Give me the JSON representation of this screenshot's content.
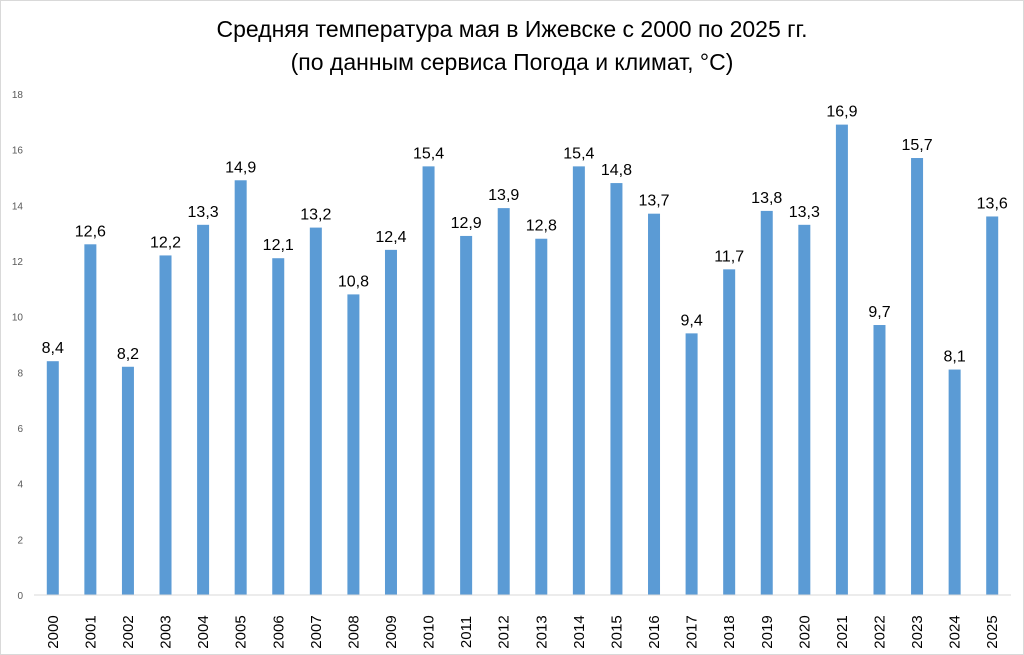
{
  "chart_data": {
    "type": "bar",
    "title": "Средняя температура мая в Ижевске с 2000 по 2025 гг.",
    "subtitle": "(по данным сервиса Погода и климат, °C)",
    "xlabel": "",
    "ylabel": "",
    "ylim": [
      0,
      18
    ],
    "yticks": [
      "0",
      "2",
      "4",
      "6",
      "8",
      "10",
      "12",
      "14",
      "16",
      "18"
    ],
    "grid": false,
    "bar_color": "#5b9bd5",
    "categories": [
      "2000",
      "2001",
      "2002",
      "2003",
      "2004",
      "2005",
      "2006",
      "2007",
      "2008",
      "2009",
      "2010",
      "2011",
      "2012",
      "2013",
      "2014",
      "2015",
      "2016",
      "2017",
      "2018",
      "2019",
      "2020",
      "2021",
      "2022",
      "2023",
      "2024",
      "2025"
    ],
    "values": [
      8.4,
      12.6,
      8.2,
      12.2,
      13.3,
      14.9,
      12.1,
      13.2,
      10.8,
      12.4,
      15.4,
      12.9,
      13.9,
      12.8,
      15.4,
      14.8,
      13.7,
      9.4,
      11.7,
      13.8,
      13.3,
      16.9,
      9.7,
      15.7,
      8.1,
      13.6
    ],
    "labels": [
      "8,4",
      "12,6",
      "8,2",
      "12,2",
      "13,3",
      "14,9",
      "12,1",
      "13,2",
      "10,8",
      "12,4",
      "15,4",
      "12,9",
      "13,9",
      "12,8",
      "15,4",
      "14,8",
      "13,7",
      "9,4",
      "11,7",
      "13,8",
      "13,3",
      "16,9",
      "9,7",
      "15,7",
      "8,1",
      "13,6"
    ]
  }
}
